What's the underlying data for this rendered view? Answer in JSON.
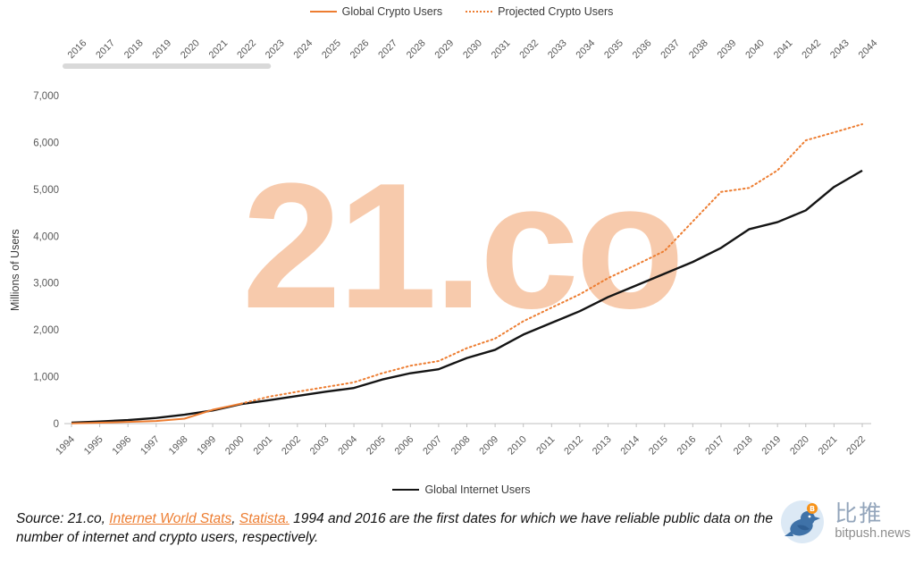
{
  "legend_top": {
    "crypto": "Global Crypto Users",
    "projected": "Projected Crypto Users"
  },
  "legend_bottom": {
    "internet": "Global Internet Users"
  },
  "watermark": "21.co",
  "y_axis_title": "Millions of Users",
  "colors": {
    "orange": "#ED7D31",
    "black": "#141414",
    "axis_text": "#595959",
    "axis_line": "#BFBFBF",
    "actual_bar": "#D9D9D9",
    "watermark": "#ED7D31",
    "link": "#ED7D31"
  },
  "source": {
    "part1": "Source: 21.co, ",
    "link1": "Internet World Stats",
    "part2": ", ",
    "link2": "Statista.",
    "part3": " 1994 and 2016 are the first dates for which we have reliable public data on the number of internet and crypto users, respectively."
  },
  "branding": {
    "name_cn": "比推",
    "site": "bitpush.news"
  },
  "chart_data": {
    "type": "line",
    "title": "",
    "ylabel": "Millions of Users",
    "ylim": [
      0,
      7000
    ],
    "y_ticks": [
      0,
      1000,
      2000,
      3000,
      4000,
      5000,
      6000,
      7000
    ],
    "grid": false,
    "legend_position": "top-and-bottom",
    "x_bottom": [
      1994,
      1995,
      1996,
      1997,
      1998,
      1999,
      2000,
      2001,
      2002,
      2003,
      2004,
      2005,
      2006,
      2007,
      2008,
      2009,
      2010,
      2011,
      2012,
      2013,
      2014,
      2015,
      2016,
      2017,
      2018,
      2019,
      2020,
      2021,
      2022
    ],
    "x_top": [
      2016,
      2017,
      2018,
      2019,
      2020,
      2021,
      2022,
      2023,
      2024,
      2025,
      2026,
      2027,
      2028,
      2029,
      2030,
      2031,
      2032,
      2033,
      2034,
      2035,
      2036,
      2037,
      2038,
      2039,
      2040,
      2041,
      2042,
      2043,
      2044
    ],
    "actual_span_top_axis": [
      2016,
      2023
    ],
    "series": [
      {
        "name": "Global Internet Users",
        "axis": "bottom",
        "color": "#141414",
        "style": "solid",
        "width": 2.4,
        "start_index": 0,
        "values": [
          20,
          45,
          75,
          120,
          190,
          280,
          415,
          500,
          590,
          680,
          760,
          940,
          1075,
          1160,
          1400,
          1575,
          1900,
          2150,
          2400,
          2700,
          2950,
          3200,
          3450,
          3750,
          4150,
          4300,
          4550,
          5050,
          5400
        ]
      },
      {
        "name": "Global Crypto Users",
        "axis": "top",
        "color": "#ED7D31",
        "style": "solid",
        "width": 2,
        "start_index": 0,
        "values": [
          5,
          18,
          35,
          55,
          105,
          295,
          425
        ]
      },
      {
        "name": "Projected Crypto Users",
        "axis": "top",
        "color": "#ED7D31",
        "style": "dotted",
        "width": 2,
        "start_index": 6,
        "values": [
          425,
          575,
          680,
          780,
          880,
          1075,
          1235,
          1335,
          1610,
          1815,
          2185,
          2475,
          2760,
          3105,
          3390,
          3685,
          4315,
          4945,
          5030,
          5405,
          6045,
          6215,
          6390
        ]
      }
    ]
  }
}
